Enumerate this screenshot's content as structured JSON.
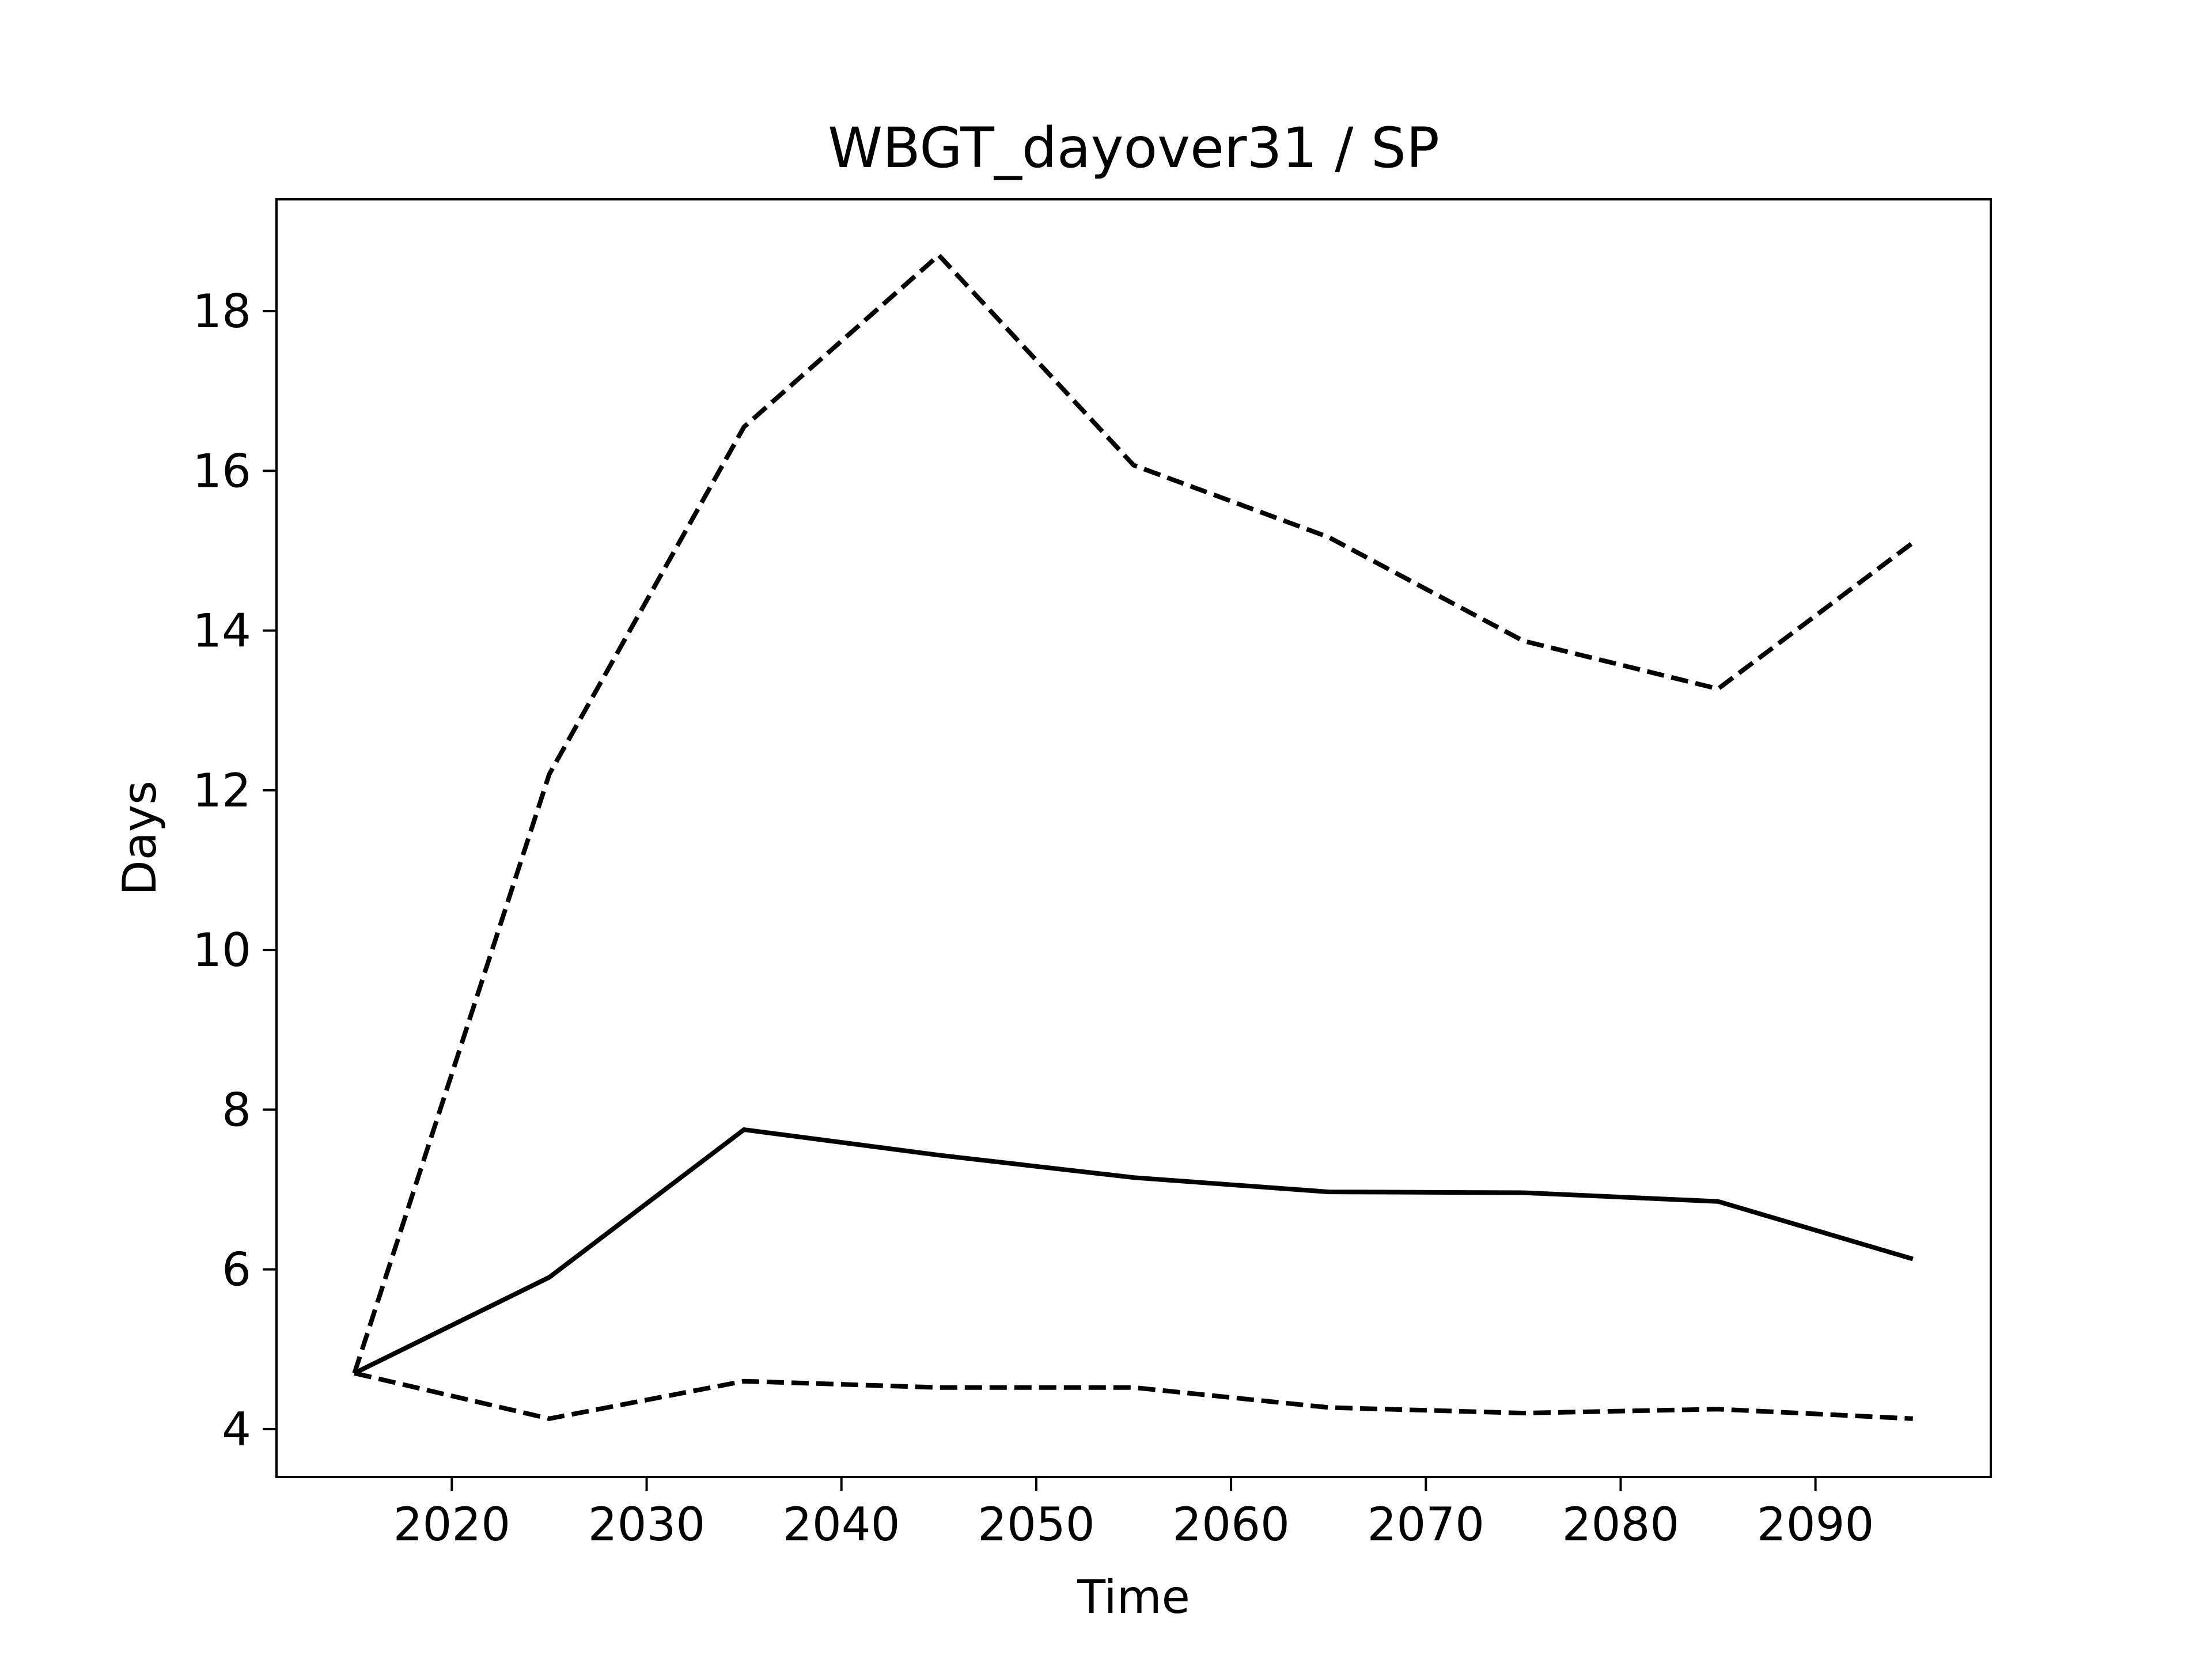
{
  "chart_data": {
    "type": "line",
    "title": "WBGT_dayover31 / SP",
    "xlabel": "Time",
    "ylabel": "Days",
    "xlim": [
      2011,
      2099
    ],
    "ylim": [
      3.4,
      19.4
    ],
    "xticks": [
      2020,
      2030,
      2040,
      2050,
      2060,
      2070,
      2080,
      2090
    ],
    "yticks": [
      4,
      6,
      8,
      10,
      12,
      14,
      16,
      18
    ],
    "grid": false,
    "legend": "none",
    "x": [
      2015,
      2025,
      2035,
      2045,
      2055,
      2065,
      2075,
      2085,
      2095
    ],
    "series": [
      {
        "style": "solid",
        "color": "#000000",
        "values": [
          4.7,
          5.9,
          7.75,
          7.43,
          7.15,
          6.97,
          6.96,
          6.85,
          6.13
        ]
      },
      {
        "style": "dashed",
        "color": "#000000",
        "values": [
          4.7,
          12.2,
          16.55,
          18.7,
          16.07,
          15.17,
          13.87,
          13.27,
          15.1
        ]
      },
      {
        "style": "dashed",
        "color": "#000000",
        "values": [
          4.7,
          4.13,
          4.6,
          4.52,
          4.52,
          4.27,
          4.2,
          4.25,
          4.13
        ]
      }
    ]
  }
}
